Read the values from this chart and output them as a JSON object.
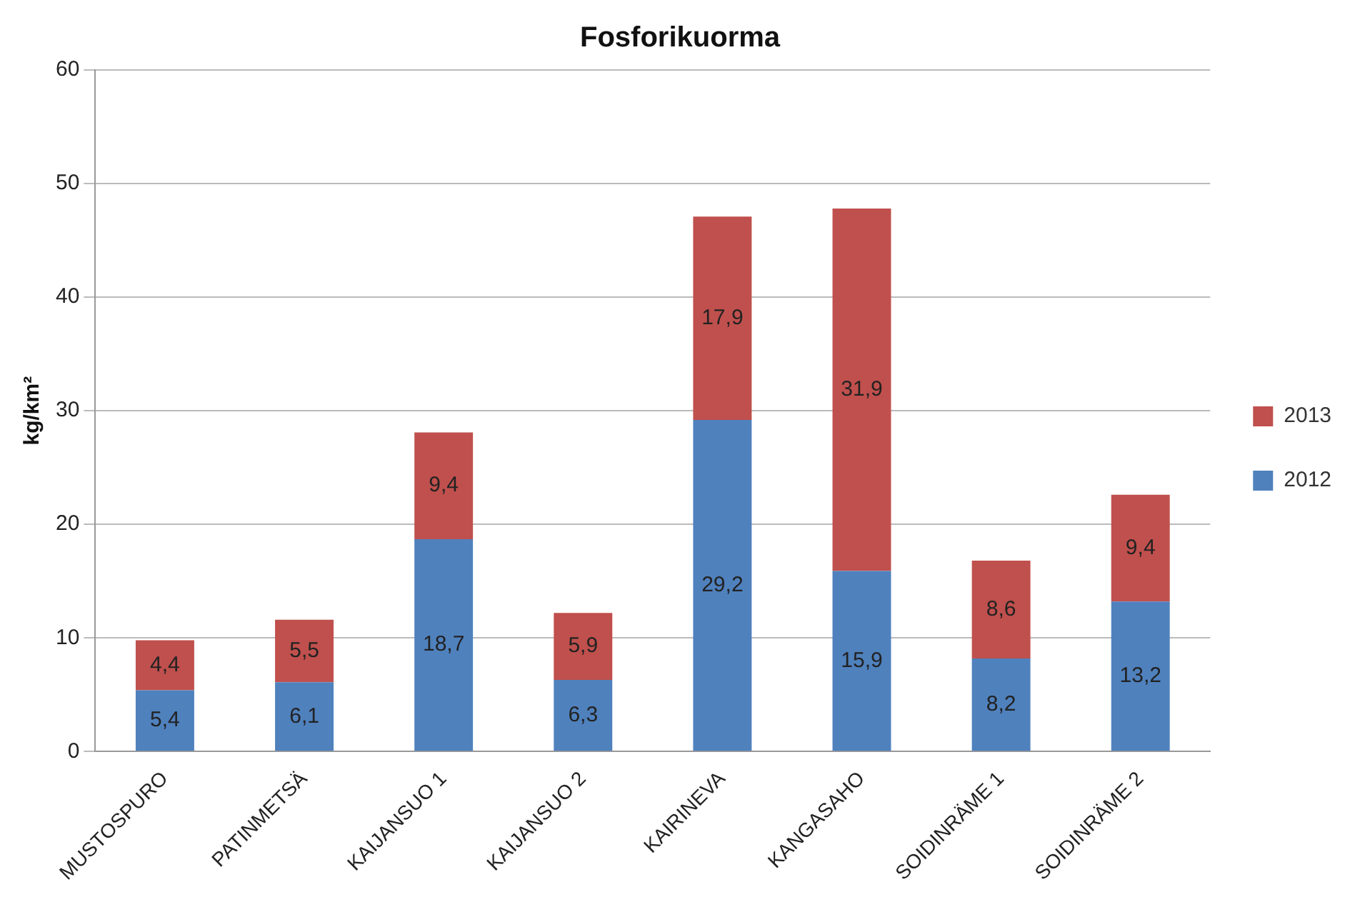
{
  "chart_data": {
    "type": "bar",
    "title": "Fosforikuorma",
    "ylabel": "kg/km²",
    "stacked": true,
    "grid": "y",
    "legend": "right",
    "categories": [
      "MUSTOSPURO",
      "PATINMETSÄ",
      "KAIJANSUO 1",
      "KAIJANSUO 2",
      "KAIRINEVA",
      "KANGASAHO",
      "SOIDINRÄME 1",
      "SOIDINRÄME 2"
    ],
    "ylim": [
      0,
      60
    ],
    "yticks": [
      0,
      10,
      20,
      30,
      40,
      50,
      60
    ],
    "series": [
      {
        "name": "2012",
        "color": "#4f81bd",
        "values": [
          5.4,
          6.1,
          18.7,
          6.3,
          29.2,
          15.9,
          8.2,
          13.2
        ],
        "value_labels": [
          "5,4",
          "6,1",
          "18,7",
          "6,3",
          "29,2",
          "15,9",
          "8,2",
          "13,2"
        ]
      },
      {
        "name": "2013",
        "color": "#c0504d",
        "values": [
          4.4,
          5.5,
          9.4,
          5.9,
          17.9,
          31.9,
          8.6,
          9.4
        ],
        "value_labels": [
          "4,4",
          "5,5",
          "9,4",
          "5,9",
          "17,9",
          "31,9",
          "8,6",
          "9,4"
        ]
      }
    ]
  }
}
